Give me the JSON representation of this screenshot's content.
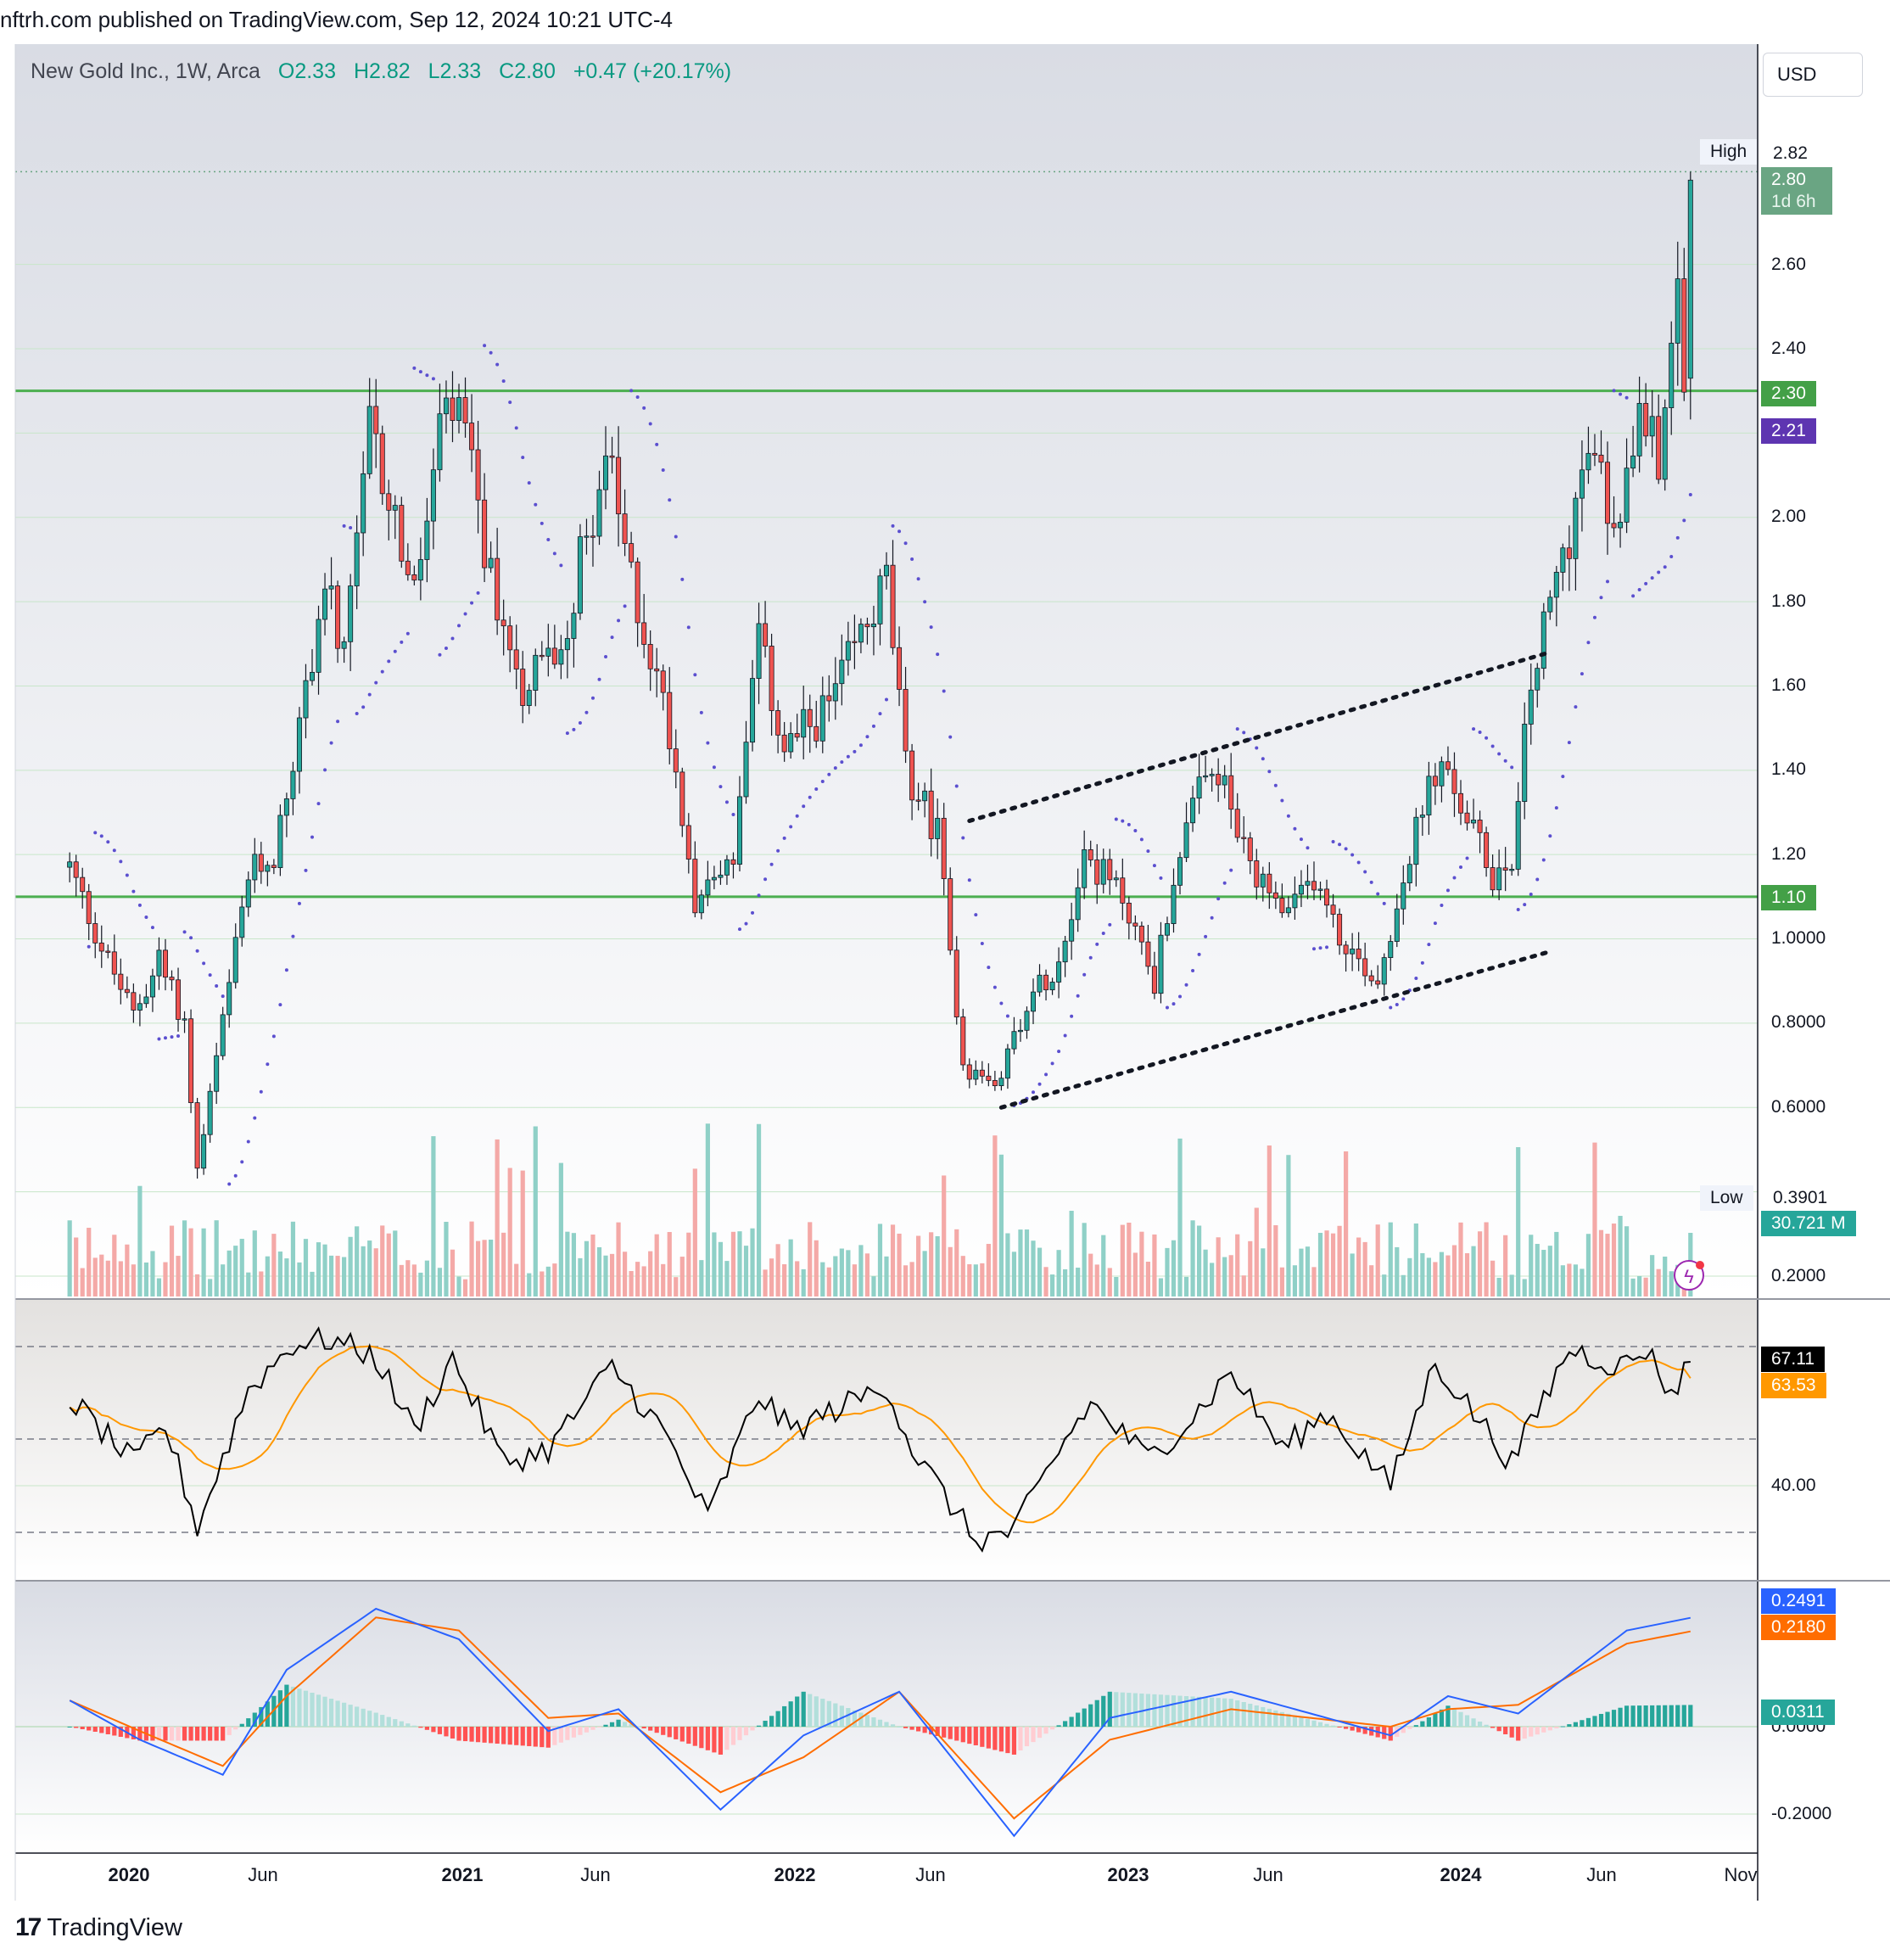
{
  "header": {
    "publisher_line": "nftrh.com published on TradingView.com, Sep 12, 2024 10:21 UTC-4",
    "symbol": "New Gold Inc., 1W, Arca",
    "open": "O2.33",
    "high": "H2.82",
    "low": "L2.33",
    "close": "C2.80",
    "change": "+0.47 (+20.17%)"
  },
  "currency_button": "USD",
  "price_axis": {
    "ticks": [
      "2.60",
      "2.40",
      "2.00",
      "1.80",
      "1.60",
      "1.40",
      "1.20",
      "1.0000",
      "0.8000",
      "0.6000",
      "0.2000"
    ],
    "high_label": "High",
    "high_value": "2.82",
    "last_price": "2.80",
    "countdown": "1d 6h",
    "line_upper": "2.30",
    "line_lower": "1.10",
    "sar_value": "2.21",
    "low_label": "Low",
    "low_value": "0.3901",
    "volume_value": "30.721 M"
  },
  "rsi_axis": {
    "tick": "40.00",
    "rsi_value": "67.11",
    "rsi_ma_value": "63.53"
  },
  "macd_axis": {
    "ticks": [
      "0.0000",
      "-0.2000"
    ],
    "macd_value": "0.2491",
    "signal_value": "0.2180",
    "hist_value": "0.0311"
  },
  "time_axis": [
    "2020",
    "Jun",
    "2021",
    "Jun",
    "2022",
    "Jun",
    "2023",
    "Jun",
    "2024",
    "Jun",
    "Nov"
  ],
  "footer_brand": "TradingView",
  "colors": {
    "up": "#26a69a",
    "down": "#ef5350",
    "line_green": "#4caf50",
    "sar": "#5b4fcf",
    "rsi": "#000000",
    "rsi_ma": "#ff9800",
    "macd": "#2962ff",
    "signal": "#ff6d00"
  },
  "chart_data": [
    {
      "type": "candlestick",
      "title": "New Gold Inc., 1W, Arca",
      "anchors": [
        {
          "date": "2019-10-28",
          "close": 1.17
        },
        {
          "date": "2019-12-02",
          "close": 0.98
        },
        {
          "date": "2020-01-06",
          "close": 0.82
        },
        {
          "date": "2020-02-03",
          "close": 0.95
        },
        {
          "date": "2020-03-02",
          "close": 0.8
        },
        {
          "date": "2020-03-16",
          "close": 0.45
        },
        {
          "date": "2020-04-13",
          "close": 0.8
        },
        {
          "date": "2020-05-11",
          "close": 1.15
        },
        {
          "date": "2020-06-08",
          "close": 1.2
        },
        {
          "date": "2020-07-06",
          "close": 1.5
        },
        {
          "date": "2020-08-03",
          "close": 1.85
        },
        {
          "date": "2020-08-24",
          "close": 1.65
        },
        {
          "date": "2020-09-21",
          "close": 2.2
        },
        {
          "date": "2020-10-19",
          "close": 2.0
        },
        {
          "date": "2020-11-09",
          "close": 1.8
        },
        {
          "date": "2020-12-07",
          "close": 2.2
        },
        {
          "date": "2020-12-28",
          "close": 2.25
        },
        {
          "date": "2021-02-01",
          "close": 1.85
        },
        {
          "date": "2021-03-08",
          "close": 1.6
        },
        {
          "date": "2021-04-19",
          "close": 1.7
        },
        {
          "date": "2021-06-07",
          "close": 2.15
        },
        {
          "date": "2021-07-05",
          "close": 1.85
        },
        {
          "date": "2021-08-16",
          "close": 1.5
        },
        {
          "date": "2021-09-13",
          "close": 1.1
        },
        {
          "date": "2021-10-25",
          "close": 1.2
        },
        {
          "date": "2021-11-22",
          "close": 1.7
        },
        {
          "date": "2021-12-20",
          "close": 1.45
        },
        {
          "date": "2022-02-07",
          "close": 1.55
        },
        {
          "date": "2022-04-11",
          "close": 1.85
        },
        {
          "date": "2022-05-02",
          "close": 1.4
        },
        {
          "date": "2022-06-06",
          "close": 1.25
        },
        {
          "date": "2022-07-04",
          "close": 0.7
        },
        {
          "date": "2022-08-08",
          "close": 0.65
        },
        {
          "date": "2022-09-12",
          "close": 0.85
        },
        {
          "date": "2022-10-17",
          "close": 0.95
        },
        {
          "date": "2022-11-14",
          "close": 1.2
        },
        {
          "date": "2022-12-26",
          "close": 1.1
        },
        {
          "date": "2023-01-30",
          "close": 0.9
        },
        {
          "date": "2023-03-06",
          "close": 1.3
        },
        {
          "date": "2023-04-10",
          "close": 1.4
        },
        {
          "date": "2023-05-15",
          "close": 1.15
        },
        {
          "date": "2023-06-26",
          "close": 1.05
        },
        {
          "date": "2023-07-24",
          "close": 1.15
        },
        {
          "date": "2023-08-21",
          "close": 1.0
        },
        {
          "date": "2023-10-02",
          "close": 0.9
        },
        {
          "date": "2023-10-30",
          "close": 1.15
        },
        {
          "date": "2023-12-04",
          "close": 1.4
        },
        {
          "date": "2023-12-25",
          "close": 1.35
        },
        {
          "date": "2024-02-05",
          "close": 1.15
        },
        {
          "date": "2024-02-26",
          "close": 1.2
        },
        {
          "date": "2024-03-18",
          "close": 1.6
        },
        {
          "date": "2024-04-15",
          "close": 1.85
        },
        {
          "date": "2024-05-20",
          "close": 2.15
        },
        {
          "date": "2024-06-24",
          "close": 1.95
        },
        {
          "date": "2024-07-15",
          "close": 2.35
        },
        {
          "date": "2024-08-05",
          "close": 2.1
        },
        {
          "date": "2024-08-26",
          "close": 2.65
        },
        {
          "date": "2024-09-02",
          "close": 2.33
        },
        {
          "date": "2024-09-09",
          "close": 2.8
        }
      ],
      "horizontal_lines": [
        2.3,
        1.1
      ],
      "trend_lines": [
        {
          "from": {
            "date": "2022-07-11",
            "price": 1.28
          },
          "to": {
            "date": "2024-04-08",
            "price": 1.68
          }
        },
        {
          "from": {
            "date": "2022-08-15",
            "price": 0.6
          },
          "to": {
            "date": "2024-04-08",
            "price": 0.97
          }
        }
      ],
      "ylim": [
        0.16,
        2.98
      ],
      "xlim": [
        "2019-10-07",
        "2024-11-18"
      ]
    },
    {
      "type": "line",
      "title": "RSI",
      "series": [
        {
          "values": []
        },
        {
          "values": []
        }
      ],
      "anchors_rsi": [
        {
          "date": "2019-10-28",
          "v": 59
        },
        {
          "date": "2020-01-06",
          "v": 45
        },
        {
          "date": "2020-02-10",
          "v": 53
        },
        {
          "date": "2020-03-16",
          "v": 31
        },
        {
          "date": "2020-05-11",
          "v": 61
        },
        {
          "date": "2020-06-29",
          "v": 71
        },
        {
          "date": "2020-08-10",
          "v": 72
        },
        {
          "date": "2020-09-28",
          "v": 68
        },
        {
          "date": "2020-11-09",
          "v": 52
        },
        {
          "date": "2020-12-21",
          "v": 68
        },
        {
          "date": "2021-02-15",
          "v": 45
        },
        {
          "date": "2021-04-05",
          "v": 48
        },
        {
          "date": "2021-06-14",
          "v": 66
        },
        {
          "date": "2021-08-09",
          "v": 52
        },
        {
          "date": "2021-09-27",
          "v": 33
        },
        {
          "date": "2021-11-22",
          "v": 60
        },
        {
          "date": "2021-12-27",
          "v": 52
        },
        {
          "date": "2022-04-11",
          "v": 62
        },
        {
          "date": "2022-05-09",
          "v": 48
        },
        {
          "date": "2022-07-18",
          "v": 28
        },
        {
          "date": "2022-08-29",
          "v": 30
        },
        {
          "date": "2022-10-24",
          "v": 50
        },
        {
          "date": "2022-11-21",
          "v": 58
        },
        {
          "date": "2023-01-23",
          "v": 46
        },
        {
          "date": "2023-03-13",
          "v": 55
        },
        {
          "date": "2023-04-24",
          "v": 65
        },
        {
          "date": "2023-06-19",
          "v": 48
        },
        {
          "date": "2023-08-07",
          "v": 56
        },
        {
          "date": "2023-10-16",
          "v": 40
        },
        {
          "date": "2023-12-04",
          "v": 67
        },
        {
          "date": "2024-02-26",
          "v": 45
        },
        {
          "date": "2024-04-29",
          "v": 70
        },
        {
          "date": "2024-06-24",
          "v": 66
        },
        {
          "date": "2024-07-22",
          "v": 70
        },
        {
          "date": "2024-08-19",
          "v": 60
        },
        {
          "date": "2024-09-09",
          "v": 67.11
        }
      ],
      "band_levels": [
        70,
        50,
        30
      ],
      "ma_last": 63.53,
      "ylim": [
        20,
        76
      ]
    },
    {
      "type": "line",
      "title": "MACD",
      "anchors_macd": [
        {
          "date": "2019-10-28",
          "macd": 0.06,
          "signal": 0.06
        },
        {
          "date": "2020-01-13",
          "macd": -0.03,
          "signal": -0.01
        },
        {
          "date": "2020-04-13",
          "macd": -0.11,
          "signal": -0.09
        },
        {
          "date": "2020-06-22",
          "macd": 0.13,
          "signal": 0.07
        },
        {
          "date": "2020-09-28",
          "macd": 0.27,
          "signal": 0.25
        },
        {
          "date": "2020-12-28",
          "macd": 0.2,
          "signal": 0.22
        },
        {
          "date": "2021-04-05",
          "macd": -0.01,
          "signal": 0.02
        },
        {
          "date": "2021-06-21",
          "macd": 0.04,
          "signal": 0.03
        },
        {
          "date": "2021-10-11",
          "macd": -0.19,
          "signal": -0.15
        },
        {
          "date": "2022-01-10",
          "macd": -0.02,
          "signal": -0.07
        },
        {
          "date": "2022-04-25",
          "macd": 0.08,
          "signal": 0.08
        },
        {
          "date": "2022-08-29",
          "macd": -0.25,
          "signal": -0.21
        },
        {
          "date": "2022-12-12",
          "macd": 0.02,
          "signal": -0.03
        },
        {
          "date": "2023-04-24",
          "macd": 0.08,
          "signal": 0.04
        },
        {
          "date": "2023-10-16",
          "macd": -0.02,
          "signal": 0.0
        },
        {
          "date": "2023-12-18",
          "macd": 0.07,
          "signal": 0.04
        },
        {
          "date": "2024-03-04",
          "macd": 0.03,
          "signal": 0.05
        },
        {
          "date": "2024-07-01",
          "macd": 0.22,
          "signal": 0.19
        },
        {
          "date": "2024-09-09",
          "macd": 0.2491,
          "signal": 0.218
        }
      ],
      "histogram_last": 0.0311,
      "ylim": [
        -0.3,
        0.32
      ]
    }
  ]
}
